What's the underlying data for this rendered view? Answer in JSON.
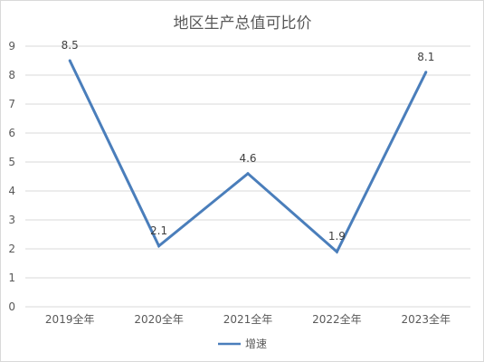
{
  "chart_data": {
    "type": "line",
    "title": "地区生产总值可比价",
    "categories": [
      "2019全年",
      "2020全年",
      "2021全年",
      "2022全年",
      "2023全年"
    ],
    "series": [
      {
        "name": "增速",
        "values": [
          8.5,
          2.1,
          4.6,
          1.9,
          8.1
        ],
        "color": "#4a7ebb"
      }
    ],
    "data_labels": [
      "8.5",
      "2.1",
      "4.6",
      "1.9",
      "8.1"
    ],
    "y_ticks": [
      "0",
      "1",
      "2",
      "3",
      "4",
      "5",
      "6",
      "7",
      "8",
      "9"
    ],
    "ylim": [
      0,
      9
    ],
    "grid": true,
    "legend_position": "bottom",
    "colors": {
      "series": "#4a7ebb",
      "grid": "#d9d9d9",
      "text": "#595959"
    }
  }
}
